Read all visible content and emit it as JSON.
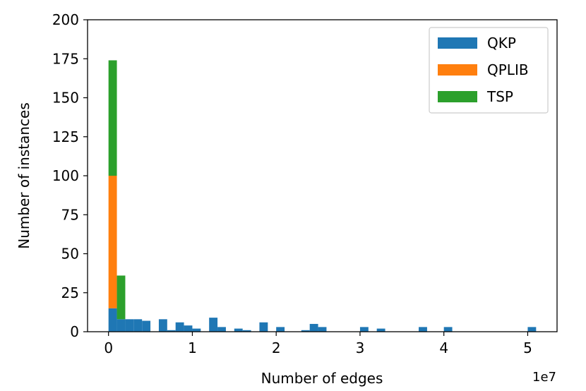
{
  "chart_data": {
    "type": "bar",
    "subtype": "stacked-histogram",
    "title": "",
    "xlabel": "Number of edges",
    "ylabel": "Number of instances",
    "x_offset_label": "1e7",
    "xlim": [
      -0.25,
      5.35
    ],
    "ylim": [
      0,
      200
    ],
    "bin_width": 0.1,
    "xticks": [
      0,
      1,
      2,
      3,
      4,
      5
    ],
    "yticks": [
      0,
      25,
      50,
      75,
      100,
      125,
      150,
      175,
      200
    ],
    "grid": false,
    "legend_position": "top-right",
    "series": [
      {
        "name": "QKP",
        "color": "#1f77b4",
        "bins": [
          {
            "x": 0.0,
            "count": 15
          },
          {
            "x": 0.1,
            "count": 8
          },
          {
            "x": 0.2,
            "count": 8
          },
          {
            "x": 0.3,
            "count": 8
          },
          {
            "x": 0.4,
            "count": 7
          },
          {
            "x": 0.6,
            "count": 8
          },
          {
            "x": 0.7,
            "count": 1
          },
          {
            "x": 0.8,
            "count": 6
          },
          {
            "x": 0.9,
            "count": 4
          },
          {
            "x": 1.0,
            "count": 2
          },
          {
            "x": 1.2,
            "count": 9
          },
          {
            "x": 1.3,
            "count": 3
          },
          {
            "x": 1.5,
            "count": 2
          },
          {
            "x": 1.6,
            "count": 1
          },
          {
            "x": 1.8,
            "count": 6
          },
          {
            "x": 2.0,
            "count": 3
          },
          {
            "x": 2.3,
            "count": 1
          },
          {
            "x": 2.4,
            "count": 5
          },
          {
            "x": 2.5,
            "count": 3
          },
          {
            "x": 3.0,
            "count": 3
          },
          {
            "x": 3.2,
            "count": 2
          },
          {
            "x": 3.7,
            "count": 3
          },
          {
            "x": 4.0,
            "count": 3
          },
          {
            "x": 5.0,
            "count": 3
          }
        ]
      },
      {
        "name": "QPLIB",
        "color": "#ff7f0e",
        "bins": [
          {
            "x": 0.0,
            "count": 85
          }
        ]
      },
      {
        "name": "TSP",
        "color": "#2ca02c",
        "bins": [
          {
            "x": 0.0,
            "count": 74
          },
          {
            "x": 0.1,
            "count": 28
          }
        ]
      }
    ]
  }
}
